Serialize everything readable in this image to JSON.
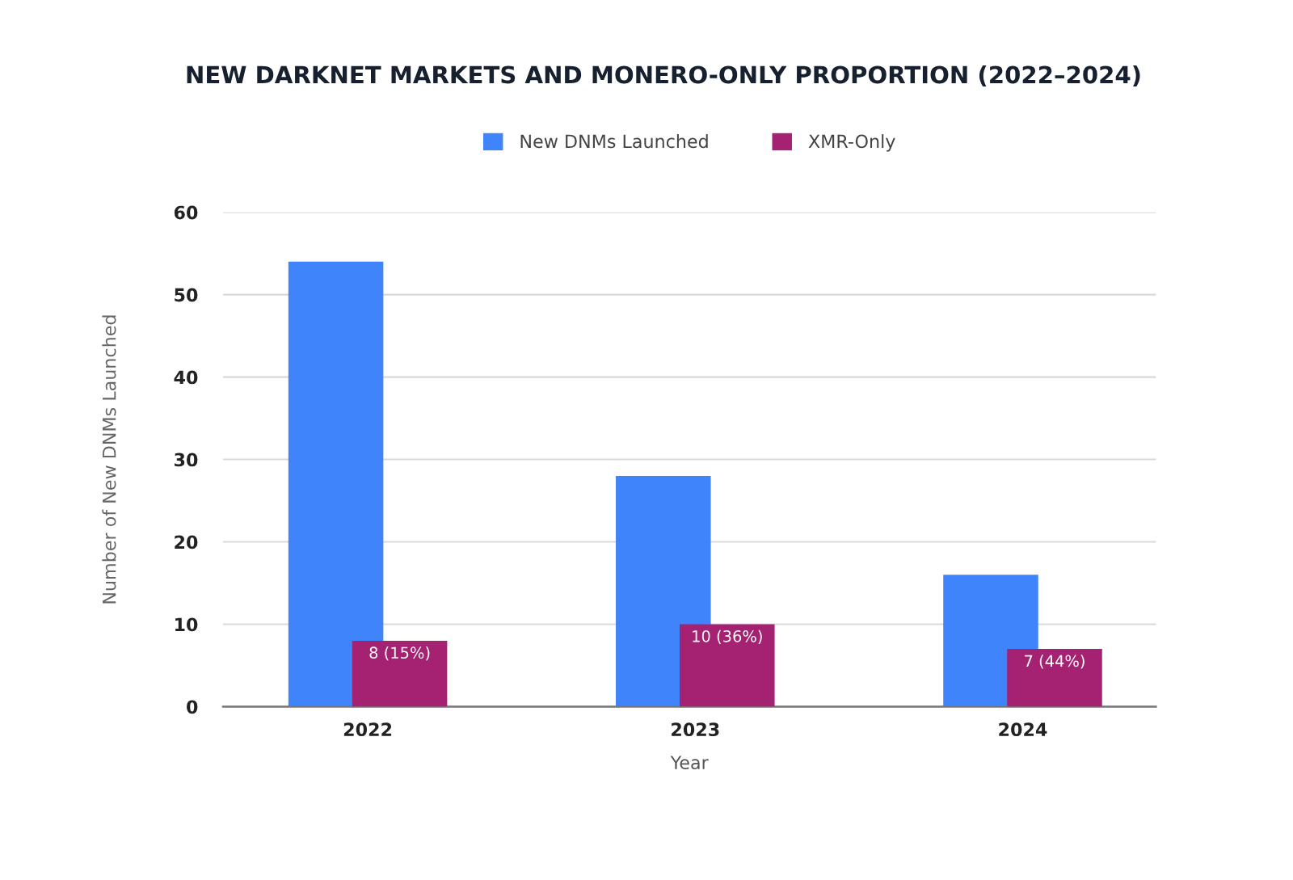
{
  "chart_data": {
    "type": "bar",
    "title": "NEW DARKNET MARKETS AND MONERO-ONLY PROPORTION (2022–2024)",
    "xlabel": "Year",
    "ylabel": "Number of New DNMs Launched",
    "categories": [
      "2022",
      "2023",
      "2024"
    ],
    "series": [
      {
        "name": "New DNMs Launched",
        "color": "#4084fb",
        "values": [
          54,
          28,
          16
        ]
      },
      {
        "name": "XMR-Only",
        "color": "#a52172",
        "values": [
          8,
          10,
          7
        ],
        "value_labels": [
          "8 (15%)",
          "10 (36%)",
          "7 (44%)"
        ]
      }
    ],
    "ylim": [
      0,
      60
    ],
    "yticks": [
      0,
      10,
      20,
      30,
      40,
      50,
      60
    ],
    "grid": "y",
    "legend": "top"
  }
}
